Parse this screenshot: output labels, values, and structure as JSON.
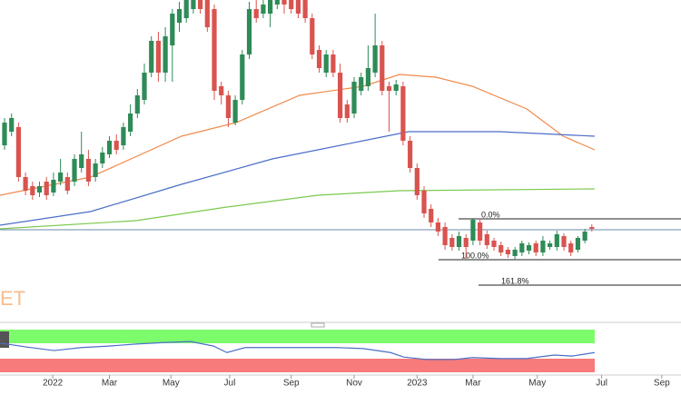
{
  "chart_data": {
    "type": "candlestick",
    "watermark": "ET",
    "xlim": [
      -0.65,
      96.75
    ],
    "ylim": [
      0,
      360
    ],
    "xticks": [
      {
        "value": 6.9,
        "label": "2022"
      },
      {
        "value": 15.0,
        "label": "Mar"
      },
      {
        "value": 23.8,
        "label": "May"
      },
      {
        "value": 32.2,
        "label": "Jul"
      },
      {
        "value": 41.0,
        "label": "Sep"
      },
      {
        "value": 50.0,
        "label": "Nov"
      },
      {
        "value": 59.0,
        "label": "2023"
      },
      {
        "value": 67.0,
        "label": "Mar"
      },
      {
        "value": 76.2,
        "label": "May"
      },
      {
        "value": 85.4,
        "label": "Jul"
      },
      {
        "value": 94.0,
        "label": "Sep"
      }
    ],
    "up_color": "#2e8b57",
    "down_color": "#d9534f",
    "open": [
      200,
      215,
      220,
      165,
      155,
      148,
      160,
      148,
      160,
      165,
      160,
      175,
      185,
      165,
      180,
      190,
      205,
      200,
      215,
      235,
      250,
      280,
      315,
      280,
      310,
      335,
      340,
      350,
      360,
      360,
      350,
      265,
      255,
      225,
      250,
      300,
      350,
      345,
      345,
      355,
      360,
      360,
      360,
      360,
      340,
      305,
      280,
      300,
      280,
      245,
      235,
      260,
      265,
      280,
      310,
      265,
      260,
      265,
      205,
      175,
      150,
      130,
      115,
      110,
      98,
      88,
      98,
      95,
      115,
      102,
      95,
      90,
      85,
      78,
      82,
      84,
      92,
      82,
      88,
      88,
      100,
      92,
      85,
      95,
      110
    ],
    "high": [
      230,
      235,
      225,
      170,
      160,
      160,
      165,
      170,
      185,
      170,
      190,
      215,
      195,
      185,
      198,
      210,
      212,
      225,
      245,
      262,
      290,
      320,
      325,
      330,
      350,
      358,
      365,
      365,
      365,
      365,
      355,
      270,
      260,
      255,
      305,
      358,
      360,
      362,
      365,
      365,
      365,
      365,
      365,
      365,
      345,
      310,
      305,
      305,
      290,
      250,
      275,
      280,
      310,
      345,
      315,
      270,
      272,
      270,
      210,
      180,
      155,
      135,
      120,
      115,
      102,
      105,
      102,
      120,
      118,
      106,
      98,
      94,
      88,
      88,
      95,
      93,
      95,
      100,
      95,
      106,
      103,
      95,
      100,
      108,
      113
    ],
    "low": [
      195,
      210,
      160,
      145,
      140,
      143,
      140,
      144,
      156,
      146,
      155,
      170,
      155,
      160,
      175,
      186,
      190,
      195,
      210,
      230,
      245,
      275,
      270,
      270,
      270,
      325,
      335,
      345,
      345,
      325,
      250,
      245,
      220,
      222,
      245,
      295,
      335,
      340,
      330,
      350,
      345,
      345,
      340,
      335,
      295,
      280,
      275,
      275,
      225,
      225,
      230,
      255,
      260,
      275,
      255,
      215,
      255,
      200,
      170,
      140,
      120,
      110,
      100,
      85,
      84,
      84,
      75,
      90,
      90,
      86,
      84,
      78,
      76,
      74,
      78,
      80,
      78,
      78,
      85,
      84,
      84,
      78,
      82,
      92,
      105
    ],
    "close": [
      225,
      230,
      165,
      150,
      145,
      155,
      145,
      162,
      170,
      150,
      185,
      190,
      160,
      180,
      192,
      205,
      195,
      220,
      235,
      255,
      280,
      315,
      280,
      320,
      345,
      350,
      360,
      360,
      350,
      330,
      260,
      255,
      230,
      250,
      300,
      350,
      340,
      355,
      360,
      360,
      355,
      350,
      345,
      340,
      300,
      285,
      300,
      280,
      230,
      230,
      270,
      275,
      285,
      310,
      260,
      260,
      267,
      205,
      175,
      145,
      125,
      115,
      105,
      90,
      88,
      100,
      88,
      118,
      95,
      90,
      88,
      82,
      80,
      85,
      92,
      90,
      82,
      95,
      92,
      102,
      88,
      82,
      98,
      105,
      108
    ],
    "moving_averages": [
      {
        "color": "#f08a4b",
        "x": [
          -0.65,
          12.3,
          25.3,
          33.1,
          42.2,
          51.3,
          56.5,
          61.7,
          66.9,
          74.7,
          79.9,
          84.4
        ],
        "values": [
          145,
          165,
          210,
          225,
          255,
          265,
          278,
          275,
          265,
          240,
          210,
          195
        ]
      },
      {
        "color": "#4a6fc7",
        "x": [
          -0.65,
          12.3,
          25.3,
          38.3,
          51.3,
          57.8,
          70.8,
          84.4
        ],
        "values": [
          112,
          127,
          157,
          185,
          205,
          215,
          215,
          210
        ]
      },
      {
        "color": "#7cc94e",
        "x": [
          -0.65,
          18.8,
          31.8,
          44.8,
          56.5,
          84.4
        ],
        "values": [
          108,
          117,
          132,
          145,
          150,
          152
        ]
      }
    ],
    "price_line": 107,
    "fib_levels": [
      {
        "label": "0.0%",
        "value": 119
      },
      {
        "label": "100.0%",
        "value": 74
      },
      {
        "label": "161.8%",
        "value": 46
      }
    ],
    "indicator": {
      "ylim": [
        0,
        100
      ],
      "color": "#4a6fc7",
      "x": [
        -0.6,
        3.2,
        7.1,
        11,
        14.9,
        18.8,
        22.7,
        26.6,
        29.9,
        31.8,
        34.4,
        38.3,
        42.2,
        47.4,
        51.3,
        55.2,
        57.1,
        60.4,
        64.3,
        66.9,
        70.8,
        74.7,
        78.6,
        81.2,
        84.4
      ],
      "values": [
        64,
        56,
        49,
        55,
        58,
        62,
        65,
        67,
        58,
        45,
        55,
        55,
        55,
        55,
        53,
        45,
        36,
        31,
        31,
        35,
        33,
        33,
        40,
        38,
        45
      ]
    }
  }
}
